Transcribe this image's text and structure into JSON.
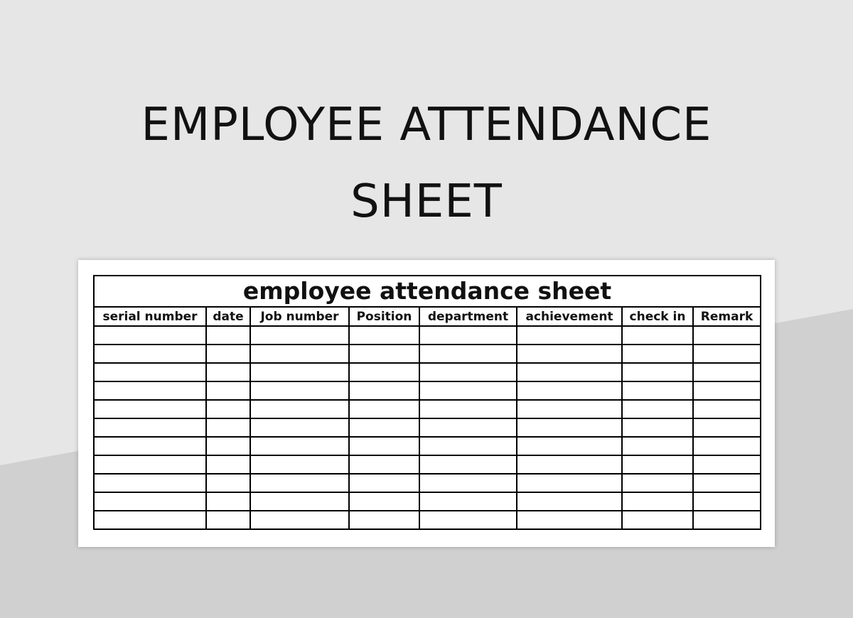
{
  "poster": {
    "title_line1": "EMPLOYEE ATTENDANCE",
    "title_line2": "SHEET"
  },
  "sheet": {
    "title": "employee attendance sheet",
    "columns": [
      "serial number",
      "date",
      "Job number",
      "Position",
      "department",
      "achievement",
      "check in",
      "Remark"
    ],
    "empty_row_count": 11
  },
  "colors": {
    "background_top": "#e6e6e6",
    "background_bottom": "#d0d0d0",
    "card": "#ffffff",
    "border": "#000000"
  }
}
